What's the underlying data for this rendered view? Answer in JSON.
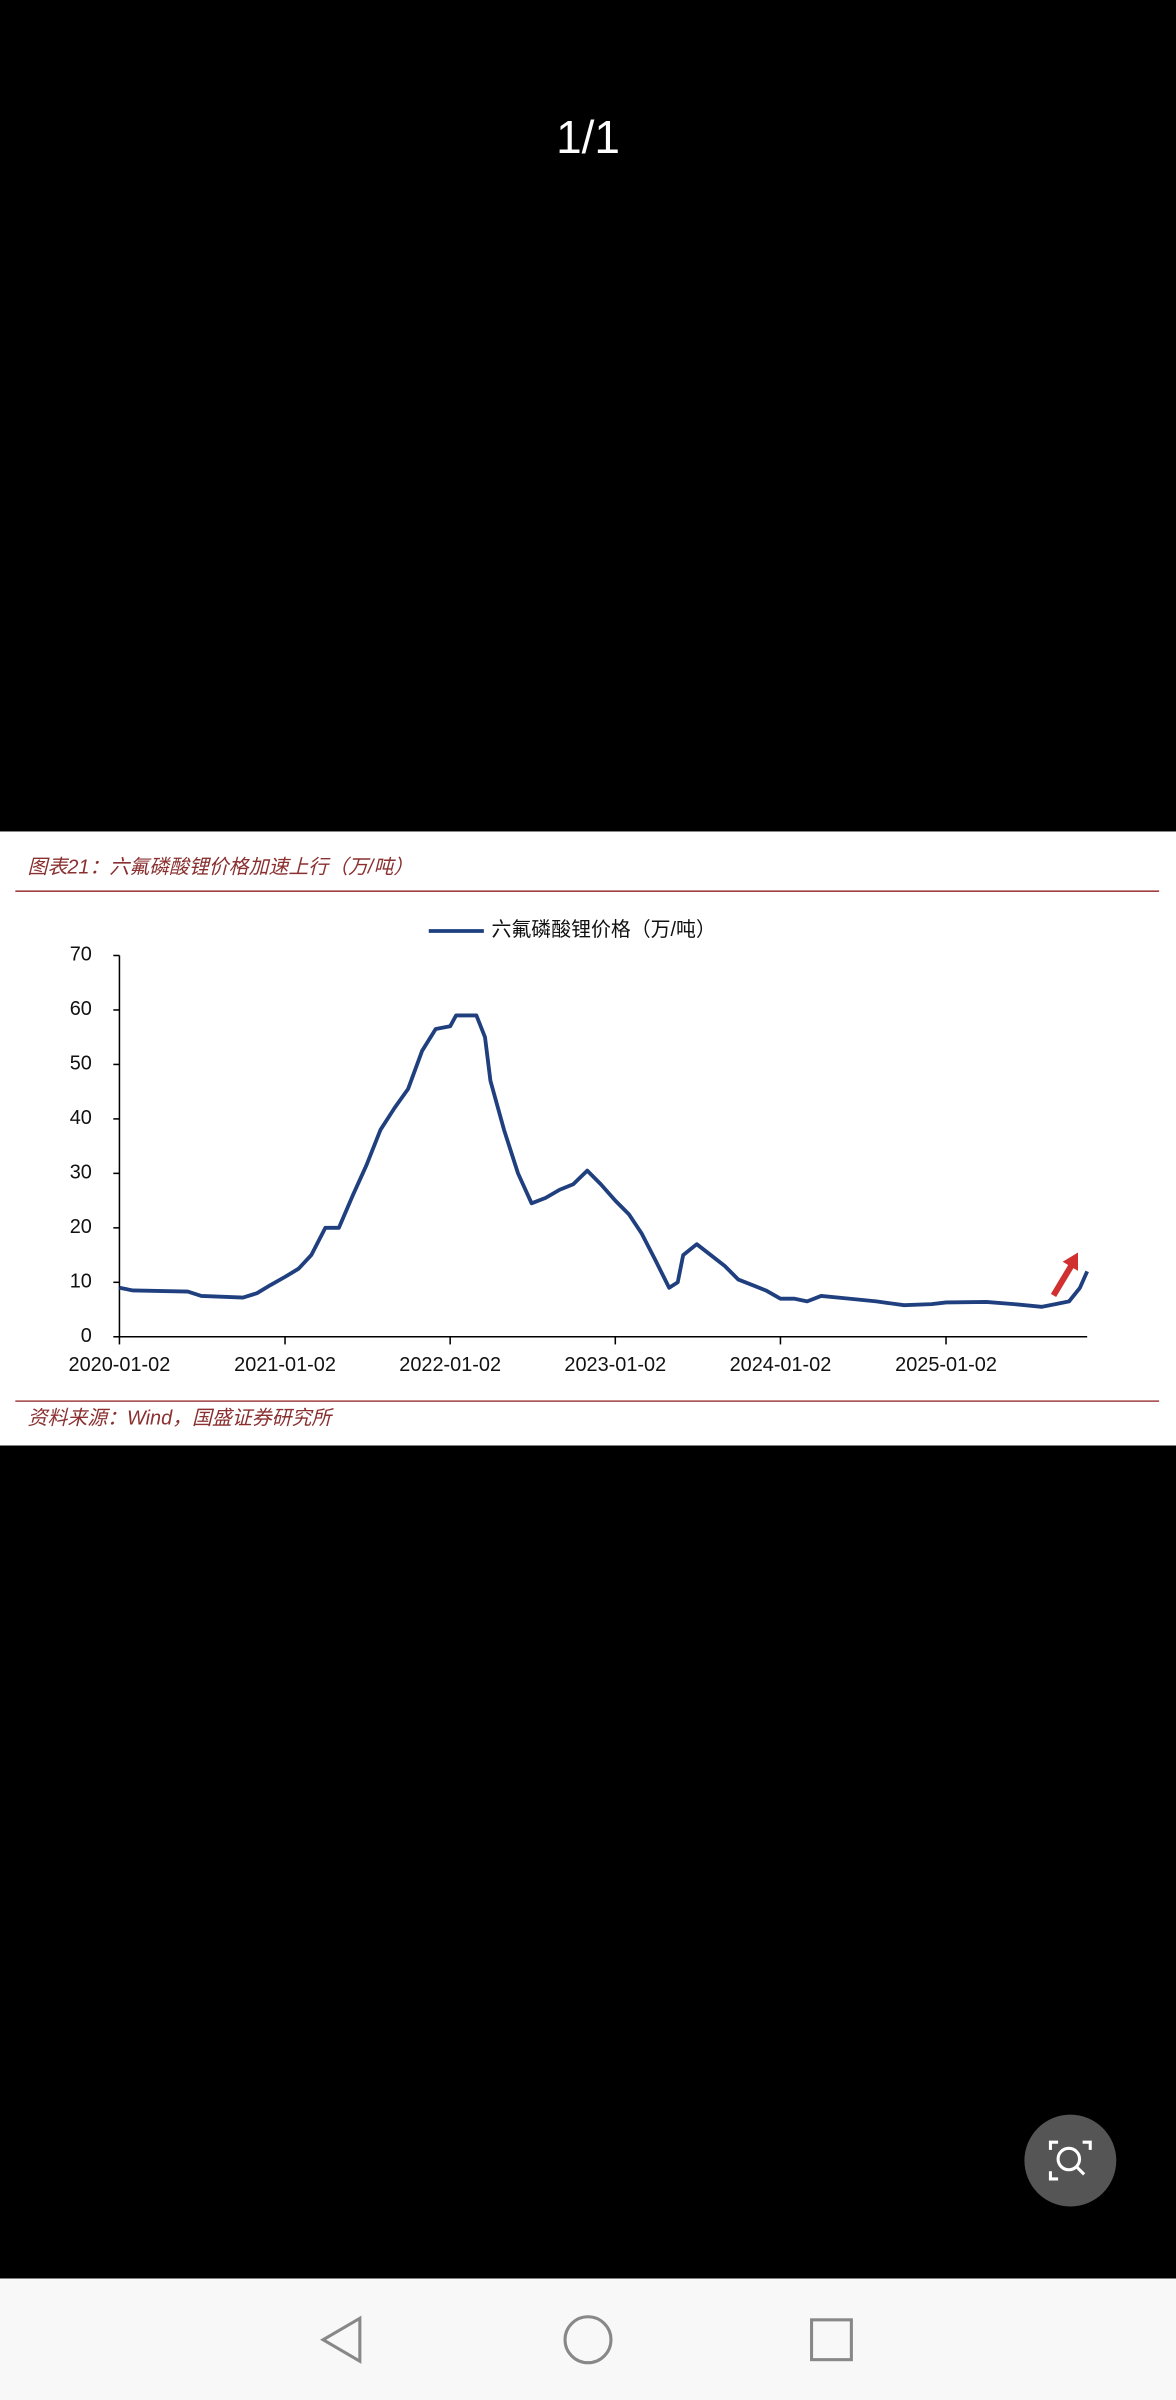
{
  "header": {
    "counter": "1/1"
  },
  "chart_data": {
    "type": "line",
    "title": "图表21：六氟磷酸锂价格加速上行（万/吨）",
    "source": "资料来源：Wind，国盛证券研究所",
    "x": [
      "2020-01-02",
      "2020-02-01",
      "2020-06-01",
      "2020-07-01",
      "2020-10-01",
      "2020-11-01",
      "2020-12-01",
      "2021-01-02",
      "2021-02-01",
      "2021-03-01",
      "2021-04-01",
      "2021-05-01",
      "2021-06-01",
      "2021-07-01",
      "2021-08-01",
      "2021-09-01",
      "2021-10-01",
      "2021-11-01",
      "2021-12-01",
      "2022-01-02",
      "2022-01-15",
      "2022-03-01",
      "2022-03-20",
      "2022-04-01",
      "2022-05-01",
      "2022-06-01",
      "2022-07-01",
      "2022-08-01",
      "2022-09-01",
      "2022-10-01",
      "2022-11-01",
      "2022-12-01",
      "2023-01-02",
      "2023-02-01",
      "2023-03-01",
      "2023-04-01",
      "2023-05-01",
      "2023-05-20",
      "2023-06-01",
      "2023-07-01",
      "2023-08-01",
      "2023-09-01",
      "2023-10-01",
      "2023-11-01",
      "2023-12-01",
      "2024-01-02",
      "2024-02-01",
      "2024-03-01",
      "2024-04-01",
      "2024-06-01",
      "2024-08-01",
      "2024-10-01",
      "2024-12-01",
      "2025-01-02",
      "2025-04-01",
      "2025-06-01",
      "2025-08-01",
      "2025-09-01",
      "2025-10-01",
      "2025-10-25",
      "2025-11-10"
    ],
    "series": [
      {
        "name": "六氟磷酸锂价格（万/吨）",
        "color": "#1f3f7f",
        "values": [
          9,
          8.5,
          8.3,
          7.5,
          7.2,
          8,
          9.5,
          11,
          12.5,
          15,
          20,
          20,
          26,
          31.5,
          38,
          42,
          45.5,
          52.5,
          56.5,
          57,
          59,
          59,
          55,
          47,
          38,
          30,
          24.5,
          25.5,
          27,
          28,
          30.5,
          28,
          25,
          22.5,
          19,
          14,
          9,
          10,
          15,
          17,
          15,
          13,
          10.5,
          9.5,
          8.5,
          7,
          7,
          6.5,
          7.5,
          7,
          6.5,
          5.8,
          6,
          6.3,
          6.4,
          6,
          5.5,
          6,
          6.5,
          9,
          12
        ]
      }
    ],
    "xlim": [
      "2020-01-02",
      "2025-11-10"
    ],
    "xticks": [
      "2020-01-02",
      "2021-01-02",
      "2022-01-02",
      "2023-01-02",
      "2024-01-02",
      "2025-01-02"
    ],
    "ylim": [
      0,
      70
    ],
    "yticks": [
      0,
      10,
      20,
      30,
      40,
      50,
      60,
      70
    ],
    "grid": false
  }
}
